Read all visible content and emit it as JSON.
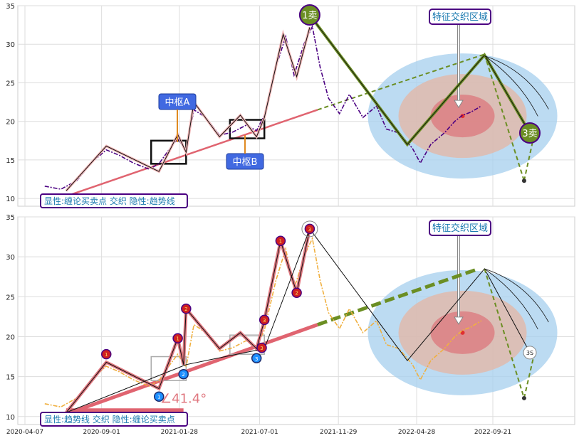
{
  "chart_data": [
    {
      "type": "line",
      "panel": "top",
      "ylim": [
        9,
        35
      ],
      "yticks": [
        10,
        15,
        20,
        25,
        30,
        35
      ],
      "grid": true,
      "price_series": [
        [
          "2020-05-15",
          11.6
        ],
        [
          "2020-06-15",
          11.2
        ],
        [
          "2020-07-15",
          12.3
        ],
        [
          "2020-08-15",
          14.8
        ],
        [
          "2020-09-10",
          16.3
        ],
        [
          "2020-10-05",
          15.6
        ],
        [
          "2020-11-01",
          14.6
        ],
        [
          "2020-12-01",
          13.8
        ],
        [
          "2020-12-20",
          14.5
        ],
        [
          "2021-01-10",
          16.5
        ],
        [
          "2021-01-25",
          17.8
        ],
        [
          "2021-02-10",
          16.2
        ],
        [
          "2021-02-25",
          21.5
        ],
        [
          "2021-03-20",
          20.5
        ],
        [
          "2021-04-15",
          18.2
        ],
        [
          "2021-05-10",
          18.6
        ],
        [
          "2021-06-05",
          19.5
        ],
        [
          "2021-06-25",
          18.8
        ],
        [
          "2021-07-10",
          20.8
        ],
        [
          "2021-08-01",
          27.0
        ],
        [
          "2021-08-20",
          31.0
        ],
        [
          "2021-09-05",
          26.0
        ],
        [
          "2021-09-25",
          30.2
        ],
        [
          "2021-10-10",
          32.3
        ],
        [
          "2021-10-25",
          27.0
        ],
        [
          "2021-11-10",
          23.0
        ],
        [
          "2021-12-01",
          21.0
        ],
        [
          "2021-12-20",
          23.5
        ],
        [
          "2022-01-15",
          20.5
        ],
        [
          "2022-02-10",
          22.0
        ],
        [
          "2022-03-01",
          19.0
        ],
        [
          "2022-03-25",
          18.5
        ],
        [
          "2022-04-20",
          16.5
        ],
        [
          "2022-05-05",
          14.6
        ],
        [
          "2022-05-25",
          17.0
        ],
        [
          "2022-06-20",
          18.5
        ],
        [
          "2022-07-10",
          20.0
        ],
        [
          "2022-07-25",
          20.8
        ],
        [
          "2022-08-10",
          21.2
        ],
        [
          "2022-08-30",
          22.0
        ]
      ],
      "bi_lines": [
        [
          "2020-06-25",
          11.0
        ],
        [
          "2020-09-10",
          16.8
        ],
        [
          "2020-12-20",
          13.5
        ],
        [
          "2021-01-25",
          18.3
        ],
        [
          "2021-02-10",
          16.0
        ],
        [
          "2021-02-25",
          22.5
        ],
        [
          "2021-04-15",
          18.0
        ],
        [
          "2021-05-25",
          20.8
        ],
        [
          "2021-06-25",
          18.0
        ],
        [
          "2021-07-10",
          20.5
        ],
        [
          "2021-08-15",
          31.3
        ],
        [
          "2021-09-10",
          25.8
        ],
        [
          "2021-10-05",
          32.2
        ]
      ],
      "sell_line": [
        [
          "2021-10-05",
          33.8
        ],
        [
          "2022-04-10",
          17.0
        ],
        [
          "2022-09-05",
          28.6
        ],
        [
          "2022-12-01",
          18.5
        ]
      ],
      "trend_line": [
        [
          "2020-06-25",
          10.3
        ],
        [
          "2021-10-20",
          21.5
        ]
      ],
      "trend_projection": [
        [
          "2021-10-20",
          21.5
        ],
        [
          "2022-09-05",
          28.7
        ]
      ],
      "projection_lines": [
        [
          [
            "2022-09-05",
            28.7
          ],
          [
            "2022-11-20",
            12.3
          ]
        ],
        [
          [
            "2022-11-20",
            12.3
          ],
          [
            "2022-12-10",
            18.5
          ]
        ]
      ],
      "hub_boxes": [
        {
          "label": "中枢A",
          "x0": "2020-12-05",
          "x1": "2021-02-10",
          "y0": 14.5,
          "y1": 17.5
        },
        {
          "label": "中枢B",
          "x0": "2021-05-05",
          "x1": "2021-07-10",
          "y0": 17.8,
          "y1": 20.2
        }
      ],
      "signals": [
        {
          "label": "1卖",
          "date": "2021-10-05",
          "price": 33.8
        },
        {
          "label": "3卖",
          "date": "2022-12-01",
          "price": 18.5
        }
      ],
      "zone_label": "特征交织区域",
      "zone_center": [
        "2022-07-25",
        20.7
      ],
      "panel_label": "显性:缠论买卖点 交织 隐性:趋势线",
      "price_color": "#4b0082",
      "trend_color": "#e06470"
    },
    {
      "type": "line",
      "panel": "bottom",
      "ylim": [
        9,
        35
      ],
      "yticks": [
        10,
        15,
        20,
        25,
        30,
        35
      ],
      "xticks": [
        "2020-04-07",
        "2020-09-01",
        "2021-01-28",
        "2021-07-01",
        "2021-11-29",
        "2022-04-28",
        "2022-09-21"
      ],
      "grid": true,
      "price_series": [
        [
          "2020-05-15",
          11.6
        ],
        [
          "2020-06-15",
          11.2
        ],
        [
          "2020-07-15",
          12.3
        ],
        [
          "2020-08-15",
          14.8
        ],
        [
          "2020-09-10",
          16.3
        ],
        [
          "2020-10-05",
          15.6
        ],
        [
          "2020-11-01",
          14.6
        ],
        [
          "2020-12-01",
          13.8
        ],
        [
          "2020-12-20",
          14.5
        ],
        [
          "2021-01-10",
          16.5
        ],
        [
          "2021-01-25",
          17.8
        ],
        [
          "2021-02-10",
          16.2
        ],
        [
          "2021-02-25",
          21.5
        ],
        [
          "2021-03-20",
          20.5
        ],
        [
          "2021-04-15",
          18.2
        ],
        [
          "2021-05-10",
          18.6
        ],
        [
          "2021-06-05",
          19.5
        ],
        [
          "2021-06-25",
          18.8
        ],
        [
          "2021-07-10",
          20.8
        ],
        [
          "2021-08-01",
          27.0
        ],
        [
          "2021-08-20",
          31.0
        ],
        [
          "2021-09-05",
          26.0
        ],
        [
          "2021-09-25",
          30.2
        ],
        [
          "2021-10-10",
          32.3
        ],
        [
          "2021-10-25",
          27.0
        ],
        [
          "2021-11-10",
          23.0
        ],
        [
          "2021-12-01",
          21.0
        ],
        [
          "2021-12-20",
          23.5
        ],
        [
          "2022-01-15",
          20.5
        ],
        [
          "2022-02-10",
          22.0
        ],
        [
          "2022-03-01",
          19.0
        ],
        [
          "2022-03-25",
          18.5
        ],
        [
          "2022-04-20",
          16.5
        ],
        [
          "2022-05-05",
          14.6
        ],
        [
          "2022-05-25",
          17.0
        ],
        [
          "2022-06-20",
          18.5
        ],
        [
          "2022-07-10",
          20.0
        ],
        [
          "2022-07-25",
          20.8
        ],
        [
          "2022-08-10",
          21.2
        ],
        [
          "2022-08-30",
          22.0
        ]
      ],
      "bi_lines": [
        [
          "2020-06-25",
          10.5
        ],
        [
          "2020-09-10",
          16.8
        ],
        [
          "2020-12-20",
          13.5
        ],
        [
          "2021-01-25",
          19.8
        ],
        [
          "2021-02-05",
          16.5
        ],
        [
          "2021-02-10",
          23.5
        ],
        [
          "2021-04-15",
          18.5
        ],
        [
          "2021-05-25",
          20.5
        ],
        [
          "2021-06-25",
          18.5
        ],
        [
          "2021-07-10",
          22.0
        ],
        [
          "2021-08-10",
          32.0
        ],
        [
          "2021-09-10",
          25.5
        ],
        [
          "2021-10-05",
          33.5
        ]
      ],
      "thin_line": [
        [
          "2020-06-25",
          10.5
        ],
        [
          "2021-02-10",
          16.5
        ],
        [
          "2021-07-10",
          18.5
        ],
        [
          "2021-10-05",
          33.5
        ],
        [
          "2022-04-10",
          17.0
        ],
        [
          "2022-09-05",
          28.5
        ],
        [
          "2022-12-01",
          18.0
        ]
      ],
      "trend_line": [
        [
          "2020-06-25",
          10.3
        ],
        [
          "2021-10-20",
          21.5
        ]
      ],
      "trend_projection": [
        [
          "2021-10-20",
          21.5
        ],
        [
          "2022-08-25",
          28.5
        ]
      ],
      "projection_lines": [
        [
          [
            "2022-09-05",
            28.5
          ],
          [
            "2022-11-20",
            12.3
          ]
        ],
        [
          [
            "2022-11-20",
            12.3
          ],
          [
            "2022-12-10",
            18.0
          ]
        ]
      ],
      "hub_boxes": [
        {
          "x0": "2020-12-05",
          "x1": "2021-02-10",
          "y0": 14.5,
          "y1": 17.5
        },
        {
          "x0": "2021-05-05",
          "x1": "2021-07-10",
          "y0": 17.8,
          "y1": 20.2
        }
      ],
      "buy_points": [
        {
          "label": "1",
          "date": "2020-12-20",
          "price": 12.5
        },
        {
          "label": "2",
          "date": "2021-02-05",
          "price": 15.3
        },
        {
          "label": "3",
          "date": "2021-06-25",
          "price": 17.3
        }
      ],
      "sell_points": [
        {
          "label": "1",
          "date": "2020-09-10",
          "price": 17.8
        },
        {
          "label": "1",
          "date": "2021-01-25",
          "price": 19.8
        },
        {
          "label": "2",
          "date": "2021-02-10",
          "price": 23.5
        },
        {
          "label": "3",
          "date": "2021-07-10",
          "price": 22.1
        },
        {
          "label": "1",
          "date": "2021-08-10",
          "price": 32.0
        },
        {
          "label": "2",
          "date": "2021-09-10",
          "price": 25.5
        },
        {
          "label": "3",
          "date": "2021-10-05",
          "price": 33.5
        },
        {
          "label": "3",
          "date": "2021-07-05",
          "price": 18.6
        }
      ],
      "angle_label": "∠41.4°",
      "signal_label": "3S",
      "zone_label": "特征交织区域",
      "zone_center": [
        "2022-07-25",
        20.5
      ],
      "panel_label": "显性:趋势线 交织 隐性:缠论买卖点",
      "price_color": "#f0b040",
      "trend_color": "#e06470"
    }
  ]
}
